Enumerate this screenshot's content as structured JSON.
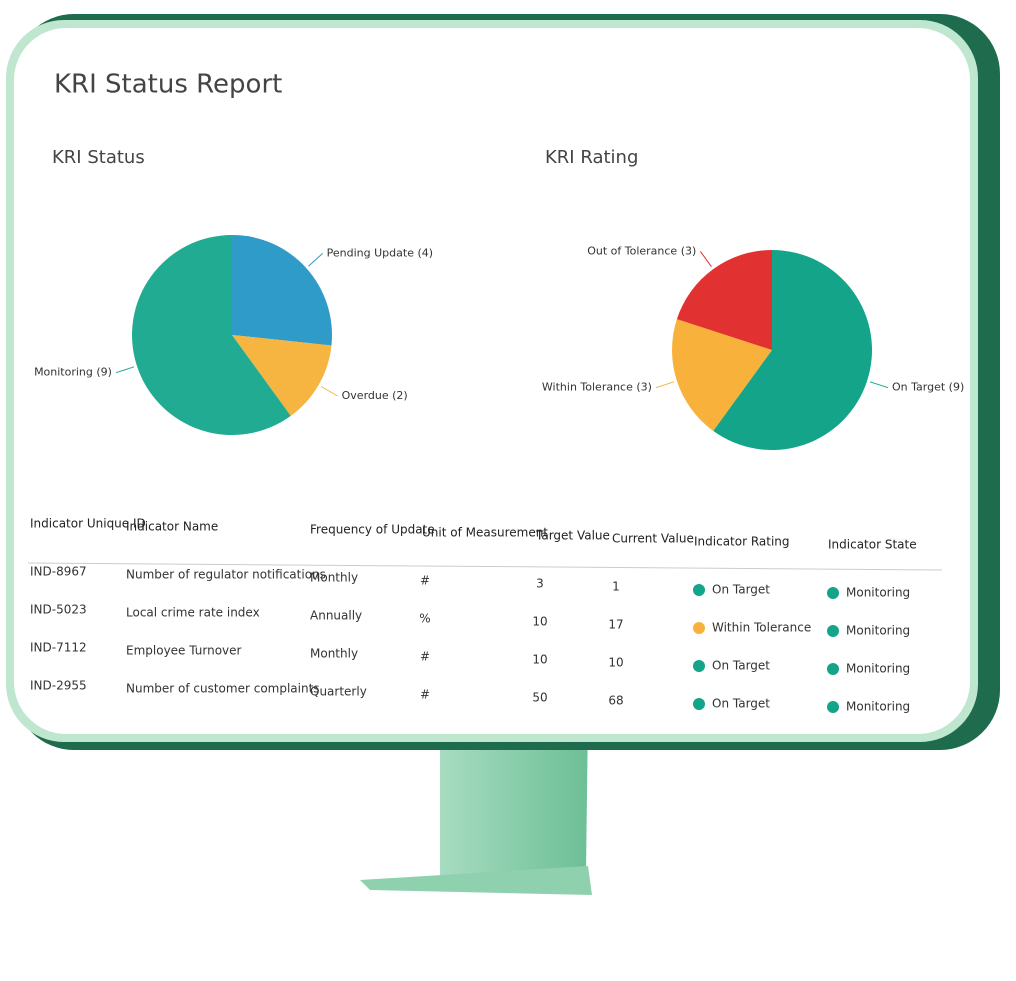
{
  "header": {
    "title": "KRI Status Report"
  },
  "chart_data": [
    {
      "type": "pie",
      "title": "KRI Status",
      "categories": [
        "Pending Update (4)",
        "Overdue (2)",
        "Monitoring (9)"
      ],
      "values": [
        4,
        2,
        9
      ],
      "colors": [
        "#2f9bc8",
        "#f6b440",
        "#22ab93"
      ]
    },
    {
      "type": "pie",
      "title": "KRI Rating",
      "categories": [
        "On Target (9)",
        "Within Tolerance (3)",
        "Out of Tolerance (3)"
      ],
      "values": [
        9,
        3,
        3
      ],
      "colors": [
        "#14a489",
        "#f8b13a",
        "#e23131"
      ]
    }
  ],
  "table": {
    "columns": [
      "Indicator Unique ID",
      "Indicator Name",
      "Frequency of Update",
      "Unit of Measurement",
      "Target Value",
      "Current Value",
      "Indicator Rating",
      "Indicator State"
    ],
    "rows": [
      [
        "IND-8967",
        "Number of regulator notifications",
        "Monthly",
        "#",
        3,
        1,
        "On Target",
        "Monitoring"
      ],
      [
        "IND-5023",
        "Local crime rate index",
        "Annually",
        "%",
        10,
        17,
        "Within Tolerance",
        "Monitoring"
      ],
      [
        "IND-7112",
        "Employee Turnover",
        "Monthly",
        "#",
        10,
        10,
        "On Target",
        "Monitoring"
      ],
      [
        "IND-2955",
        "Number of customer complaints",
        "Quarterly",
        "#",
        50,
        68,
        "On Target",
        "Monitoring"
      ]
    ],
    "rating_colors": [
      "#14a489",
      "#f8b13a",
      "#14a489",
      "#14a489"
    ],
    "state_color": "#14a489"
  }
}
